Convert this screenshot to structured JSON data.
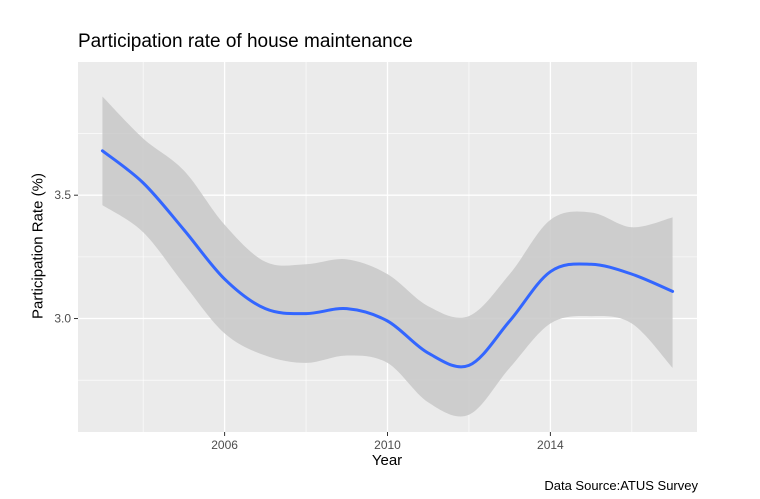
{
  "chart_data": {
    "type": "line",
    "title": "Participation rate of house maintenance",
    "xlabel": "Year",
    "ylabel": "Participation Rate (%)",
    "caption": "Data Source:ATUS Survey",
    "xlim": [
      2002.4,
      2017.6
    ],
    "ylim": [
      2.54,
      4.04
    ],
    "x_ticks": [
      2006,
      2010,
      2014
    ],
    "x_tick_labels": [
      "2006",
      "2010",
      "2014"
    ],
    "x_minor_ticks": [
      2004,
      2008,
      2012,
      2016
    ],
    "y_ticks": [
      3.0,
      3.5
    ],
    "y_tick_labels": [
      "3.0",
      "3.5"
    ],
    "y_minor_ticks": [
      2.75,
      3.25,
      3.75
    ],
    "grid": true,
    "colors": {
      "line": "#3366FF",
      "band": "#c8c8c8",
      "panel": "#ebebeb",
      "grid": "#ffffff"
    },
    "series": [
      {
        "x": [
          2003,
          2004,
          2005,
          2006,
          2007,
          2008,
          2009,
          2010,
          2011,
          2012,
          2013,
          2014,
          2015,
          2016,
          2017
        ],
        "y": [
          3.68,
          3.55,
          3.36,
          3.16,
          3.04,
          3.02,
          3.04,
          2.99,
          2.86,
          2.81,
          2.99,
          3.19,
          3.22,
          3.18,
          3.11
        ],
        "upper": [
          3.9,
          3.73,
          3.6,
          3.38,
          3.23,
          3.22,
          3.24,
          3.18,
          3.05,
          3.01,
          3.18,
          3.4,
          3.43,
          3.37,
          3.41
        ],
        "lower": [
          3.46,
          3.35,
          3.14,
          2.94,
          2.85,
          2.82,
          2.85,
          2.82,
          2.66,
          2.61,
          2.8,
          2.98,
          3.01,
          2.98,
          2.8
        ]
      }
    ]
  }
}
